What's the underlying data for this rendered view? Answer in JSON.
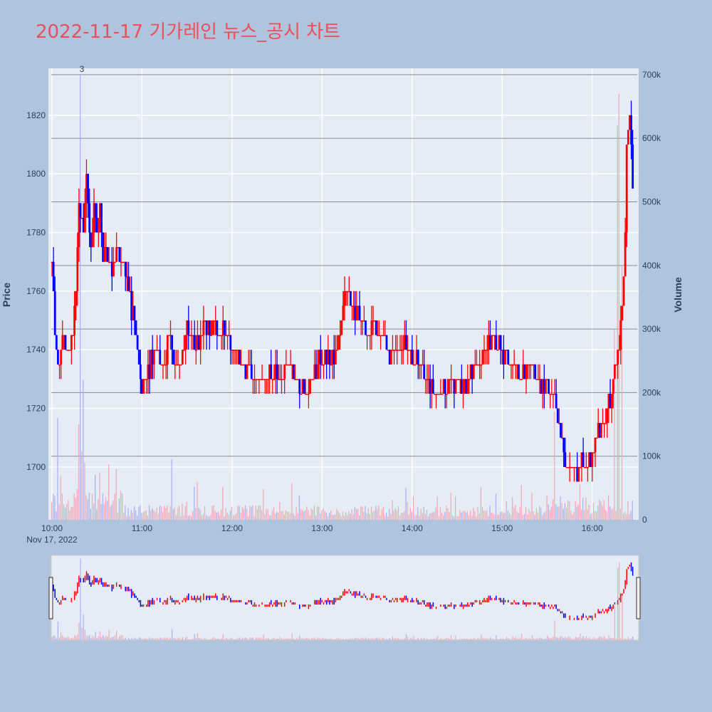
{
  "title": "2022-11-17 기가레인 뉴스_공시 차트",
  "chart_data": {
    "type": "candlestick",
    "date_label": "Nov 17, 2022",
    "x_tick_labels": [
      "10:00",
      "11:00",
      "12:00",
      "13:00",
      "14:00",
      "15:00",
      "16:00"
    ],
    "y_axis_label": "Price",
    "y_range": [
      1682,
      1836
    ],
    "y_tick_values": [
      1700,
      1720,
      1740,
      1760,
      1780,
      1800,
      1820
    ],
    "y2_axis_label": "Volume",
    "y2_range": [
      0,
      710000
    ],
    "y2_tick_values": [
      0,
      100000,
      200000,
      300000,
      400000,
      500000,
      600000,
      700000
    ],
    "y2_tick_labels": [
      "0",
      "100k",
      "200k",
      "300k",
      "400k",
      "500k",
      "600k",
      "700k"
    ],
    "annotation": {
      "label": "3",
      "time": "10:19",
      "volume": 700000
    },
    "up_color": "#ff0000",
    "down_color": "#0000ff",
    "plot_bg": "#e5ecf6",
    "page_bg": "#b0c4de",
    "price_path": [
      [
        "10:00",
        1768
      ],
      [
        "10:02",
        1745
      ],
      [
        "10:05",
        1735
      ],
      [
        "10:08",
        1745
      ],
      [
        "10:11",
        1738
      ],
      [
        "10:14",
        1748
      ],
      [
        "10:16",
        1760
      ],
      [
        "10:18",
        1790
      ],
      [
        "10:21",
        1780
      ],
      [
        "10:23",
        1798
      ],
      [
        "10:26",
        1775
      ],
      [
        "10:28",
        1792
      ],
      [
        "10:30",
        1780
      ],
      [
        "10:32",
        1790
      ],
      [
        "10:34",
        1772
      ],
      [
        "10:36",
        1776
      ],
      [
        "10:40",
        1765
      ],
      [
        "10:43",
        1775
      ],
      [
        "10:47",
        1770
      ],
      [
        "10:50",
        1762
      ],
      [
        "10:55",
        1748
      ],
      [
        "10:58",
        1735
      ],
      [
        "11:00",
        1725
      ],
      [
        "11:03",
        1730
      ],
      [
        "11:07",
        1738
      ],
      [
        "11:10",
        1740
      ],
      [
        "11:14",
        1732
      ],
      [
        "11:18",
        1745
      ],
      [
        "11:22",
        1735
      ],
      [
        "11:26",
        1735
      ],
      [
        "11:30",
        1748
      ],
      [
        "11:35",
        1742
      ],
      [
        "11:40",
        1745
      ],
      [
        "11:45",
        1748
      ],
      [
        "11:50",
        1745
      ],
      [
        "11:55",
        1747
      ],
      [
        "12:00",
        1740
      ],
      [
        "12:06",
        1735
      ],
      [
        "12:12",
        1732
      ],
      [
        "12:18",
        1730
      ],
      [
        "12:24",
        1732
      ],
      [
        "12:30",
        1730
      ],
      [
        "12:36",
        1735
      ],
      [
        "12:42",
        1732
      ],
      [
        "12:48",
        1725
      ],
      [
        "12:54",
        1730
      ],
      [
        "13:00",
        1738
      ],
      [
        "13:06",
        1735
      ],
      [
        "13:10",
        1740
      ],
      [
        "13:14",
        1755
      ],
      [
        "13:17",
        1762
      ],
      [
        "13:20",
        1755
      ],
      [
        "13:25",
        1752
      ],
      [
        "13:30",
        1745
      ],
      [
        "13:35",
        1748
      ],
      [
        "13:40",
        1745
      ],
      [
        "13:45",
        1738
      ],
      [
        "13:50",
        1740
      ],
      [
        "13:55",
        1742
      ],
      [
        "14:00",
        1738
      ],
      [
        "14:06",
        1733
      ],
      [
        "14:12",
        1728
      ],
      [
        "14:18",
        1724
      ],
      [
        "14:24",
        1730
      ],
      [
        "14:30",
        1728
      ],
      [
        "14:36",
        1727
      ],
      [
        "14:42",
        1735
      ],
      [
        "14:48",
        1740
      ],
      [
        "14:54",
        1743
      ],
      [
        "15:00",
        1740
      ],
      [
        "15:06",
        1735
      ],
      [
        "15:12",
        1732
      ],
      [
        "15:18",
        1735
      ],
      [
        "15:24",
        1730
      ],
      [
        "15:30",
        1728
      ],
      [
        "15:34",
        1725
      ],
      [
        "15:36",
        1718
      ],
      [
        "15:40",
        1710
      ],
      [
        "15:43",
        1700
      ],
      [
        "15:46",
        1696
      ],
      [
        "15:50",
        1698
      ],
      [
        "15:53",
        1704
      ],
      [
        "15:57",
        1700
      ],
      [
        "16:00",
        1706
      ],
      [
        "16:03",
        1712
      ],
      [
        "16:06",
        1715
      ],
      [
        "16:09",
        1718
      ],
      [
        "16:12",
        1722
      ],
      [
        "16:14",
        1728
      ],
      [
        "16:16",
        1735
      ],
      [
        "16:18",
        1742
      ],
      [
        "16:20",
        1755
      ],
      [
        "16:22",
        1780
      ],
      [
        "16:23",
        1808
      ],
      [
        "16:25",
        1820
      ],
      [
        "16:27",
        1792
      ]
    ]
  },
  "range_slider": {
    "handles": 2
  }
}
